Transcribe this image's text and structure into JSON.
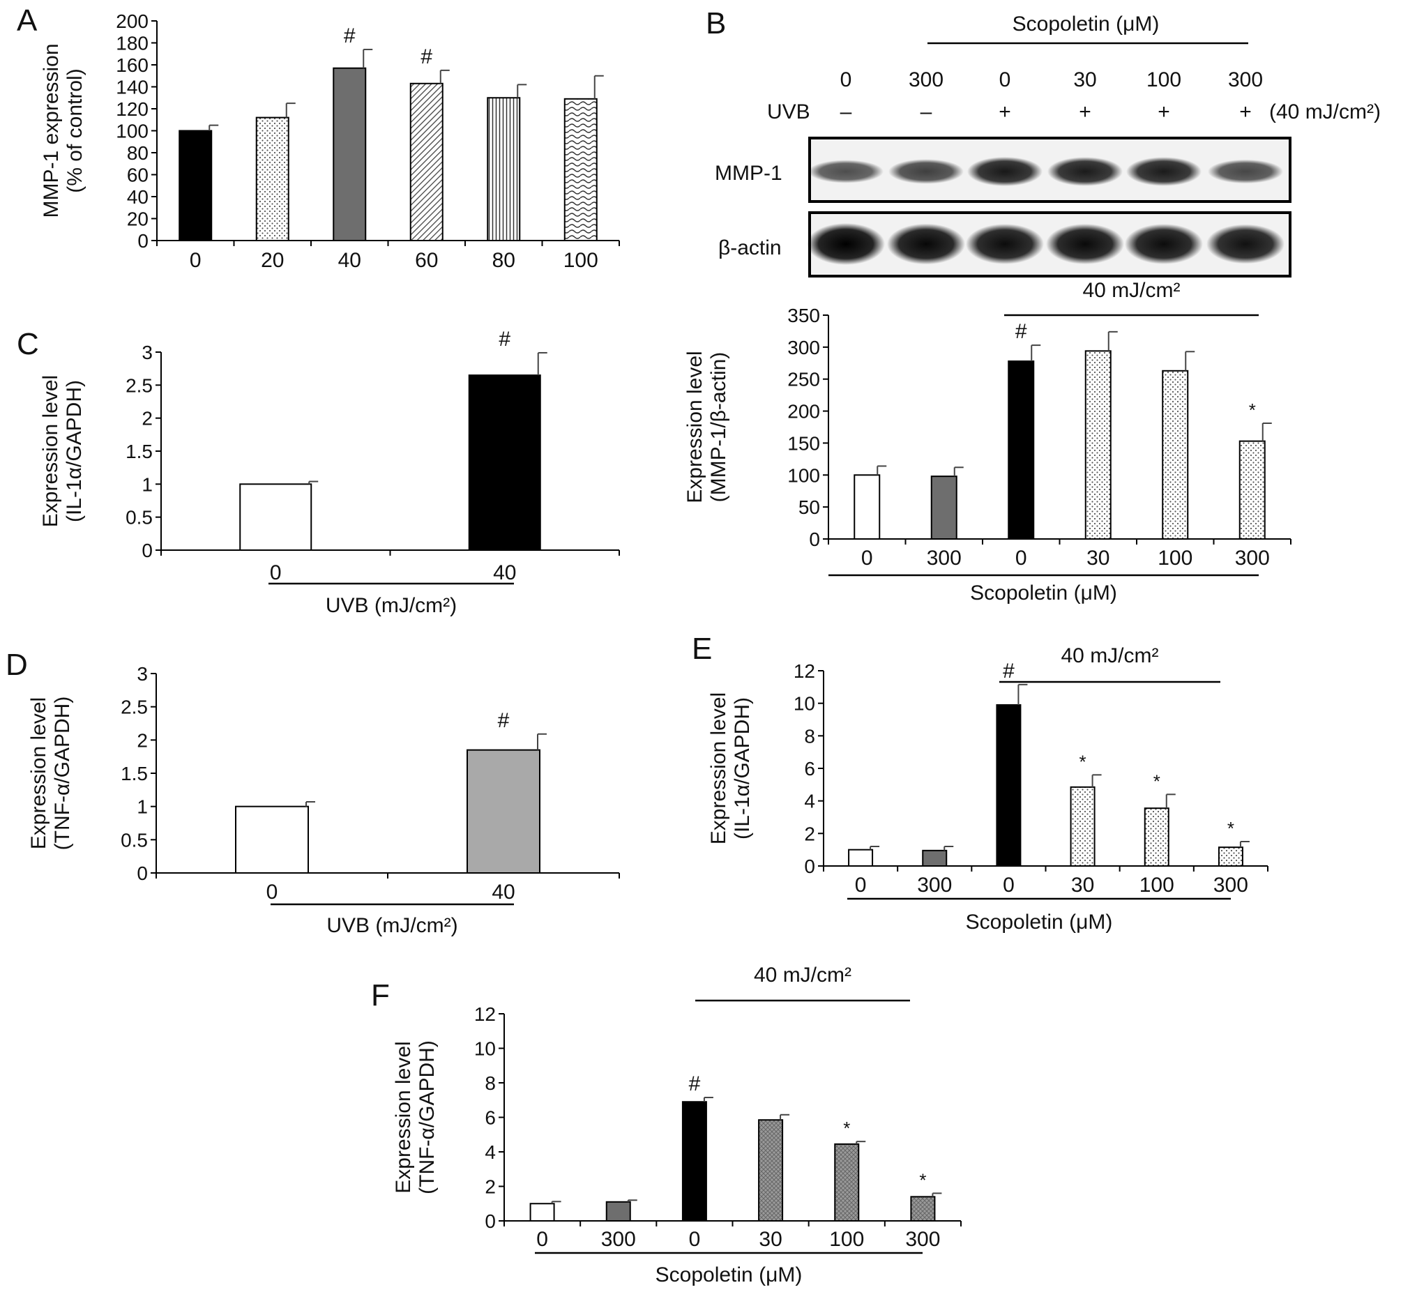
{
  "figure": {
    "panels": {
      "A": {
        "letter": "A"
      },
      "B": {
        "letter": "B",
        "top_bracket_label": "Scopoletin (μM)",
        "lane_doses": [
          "0",
          "300",
          "0",
          "30",
          "100",
          "300"
        ],
        "uvb_label": "UVB",
        "uvb_signs": [
          "–",
          "–",
          "+",
          "+",
          "+",
          "+"
        ],
        "uvb_dose": "(40 mJ/cm²)",
        "blot_rows": [
          "MMP-1",
          "β-actin"
        ],
        "band_intensity": {
          "MMP-1": [
            0.55,
            0.65,
            0.92,
            0.9,
            0.9,
            0.6
          ],
          "beta-actin": [
            1.0,
            0.95,
            0.92,
            0.93,
            0.92,
            0.88
          ]
        }
      },
      "C": {
        "letter": "C"
      },
      "D": {
        "letter": "D"
      },
      "E": {
        "letter": "E"
      },
      "F": {
        "letter": "F"
      }
    }
  },
  "chart_data": [
    {
      "panel": "A",
      "type": "bar",
      "categories": [
        "0",
        "20",
        "40",
        "60",
        "80",
        "100"
      ],
      "values": [
        100,
        112,
        157,
        143,
        130,
        129
      ],
      "errors": [
        5,
        13,
        17,
        12,
        12,
        21
      ],
      "annotations": [
        "",
        "",
        "#",
        "#",
        "",
        ""
      ],
      "fills": [
        "black",
        "dots",
        "darkgray",
        "diagonal",
        "vertical",
        "wave"
      ],
      "ylabel": "MMP-1 expression",
      "ylabel2": "(% of control)",
      "ylim": [
        0,
        200
      ],
      "yticks": [
        "0",
        "20",
        "40",
        "60",
        "80",
        "100",
        "120",
        "140",
        "160",
        "180",
        "200"
      ],
      "xlabel": ""
    },
    {
      "panel": "B",
      "type": "bar",
      "categories": [
        "0",
        "300",
        "0",
        "30",
        "100",
        "300"
      ],
      "values": [
        100,
        98,
        278,
        294,
        263,
        153
      ],
      "errors": [
        14,
        14,
        25,
        30,
        30,
        28
      ],
      "annotations": [
        "",
        "",
        "#",
        "",
        "",
        "*"
      ],
      "fills": [
        "white",
        "darkgray",
        "black",
        "dots",
        "dots",
        "dots"
      ],
      "ylabel": "Expression level",
      "ylabel2": "(MMP-1/β-actin)",
      "ylim": [
        0,
        350
      ],
      "yticks": [
        "0",
        "50",
        "100",
        "150",
        "200",
        "250",
        "300",
        "350"
      ],
      "xlabel": "Scopoletin (μM)",
      "bracket_label": "40 mJ/cm²"
    },
    {
      "panel": "C",
      "type": "bar",
      "categories": [
        "0",
        "40"
      ],
      "values": [
        1.0,
        2.65
      ],
      "errors": [
        0.04,
        0.34
      ],
      "annotations": [
        "",
        "#"
      ],
      "fills": [
        "white",
        "black"
      ],
      "ylabel": "Expression level",
      "ylabel2": "(IL-1α/GAPDH)",
      "ylim": [
        0,
        3
      ],
      "yticks": [
        "0",
        "0.5",
        "1",
        "1.5",
        "2",
        "2.5",
        "3"
      ],
      "xlabel": "UVB (mJ/cm²)"
    },
    {
      "panel": "D",
      "type": "bar",
      "categories": [
        "0",
        "40"
      ],
      "values": [
        1.0,
        1.85
      ],
      "errors": [
        0.07,
        0.24
      ],
      "annotations": [
        "",
        "#"
      ],
      "fills": [
        "white",
        "lightgray"
      ],
      "ylabel": "Expression level",
      "ylabel2": "(TNF-α/GAPDH)",
      "ylim": [
        0,
        3
      ],
      "yticks": [
        "0",
        "0.5",
        "1",
        "1.5",
        "2",
        "2.5",
        "3"
      ],
      "xlabel": "UVB (mJ/cm²)"
    },
    {
      "panel": "E",
      "type": "bar",
      "categories": [
        "0",
        "300",
        "0",
        "30",
        "100",
        "300"
      ],
      "values": [
        1.0,
        0.95,
        9.9,
        4.85,
        3.55,
        1.15
      ],
      "errors": [
        0.2,
        0.25,
        1.25,
        0.75,
        0.85,
        0.35
      ],
      "annotations": [
        "",
        "",
        "#",
        "*",
        "*",
        "*"
      ],
      "fills": [
        "white",
        "darkgray",
        "black",
        "dots",
        "dots",
        "dots"
      ],
      "ylabel": "Expression level",
      "ylabel2": "(IL-1α/GAPDH)",
      "ylim": [
        0,
        12
      ],
      "yticks": [
        "0",
        "2",
        "4",
        "6",
        "8",
        "10",
        "12"
      ],
      "xlabel": "Scopoletin (μM)",
      "bracket_label": "40 mJ/cm²"
    },
    {
      "panel": "F",
      "type": "bar",
      "categories": [
        "0",
        "300",
        "0",
        "30",
        "100",
        "300"
      ],
      "values": [
        1.0,
        1.1,
        6.9,
        5.85,
        4.45,
        1.4
      ],
      "errors": [
        0.12,
        0.1,
        0.25,
        0.3,
        0.15,
        0.2
      ],
      "annotations": [
        "",
        "",
        "#",
        "",
        "*",
        "*"
      ],
      "fills": [
        "white",
        "darkgray",
        "black",
        "crosshatch",
        "crosshatch",
        "crosshatch"
      ],
      "ylabel": "Expression level",
      "ylabel2": "(TNF-α/GAPDH)",
      "ylim": [
        0,
        12
      ],
      "yticks": [
        "0",
        "2",
        "4",
        "6",
        "8",
        "10",
        "12"
      ],
      "xlabel": "Scopoletin (μM)",
      "bracket_label": "40 mJ/cm²"
    }
  ]
}
